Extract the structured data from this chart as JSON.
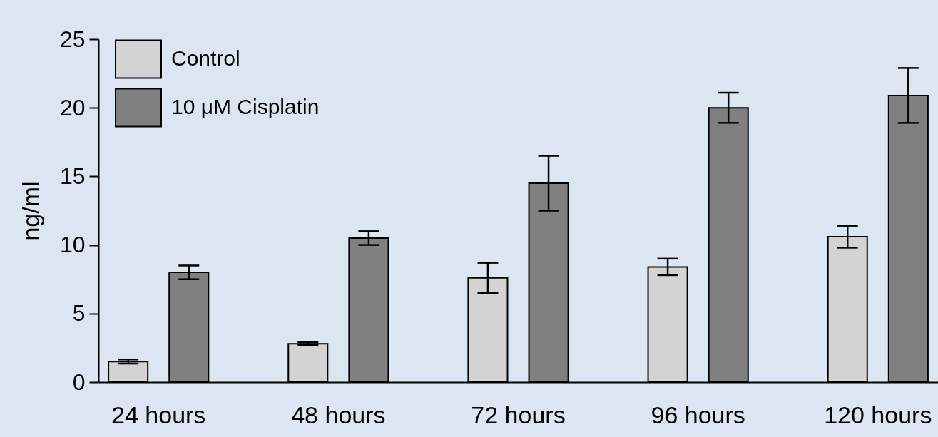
{
  "chart_data": {
    "type": "bar",
    "categories": [
      "24 hours",
      "48 hours",
      "72 hours",
      "96 hours",
      "120 hours"
    ],
    "ylabel": "ng/ml",
    "ylim": [
      0,
      25
    ],
    "yticks": [
      0,
      5,
      10,
      15,
      20,
      25
    ],
    "grid": false,
    "legend": "top left",
    "series": [
      {
        "name": "Control",
        "color": "#d3d3d3",
        "values": [
          1.5,
          2.8,
          7.6,
          8.4,
          10.6
        ],
        "errors": [
          0.15,
          0.1,
          1.1,
          0.6,
          0.8
        ]
      },
      {
        "name": "10 μM Cisplatin",
        "color": "#808080",
        "values": [
          8.0,
          10.5,
          14.5,
          20.0,
          20.9
        ],
        "errors": [
          0.5,
          0.5,
          2.0,
          1.1,
          2.0
        ]
      }
    ]
  }
}
